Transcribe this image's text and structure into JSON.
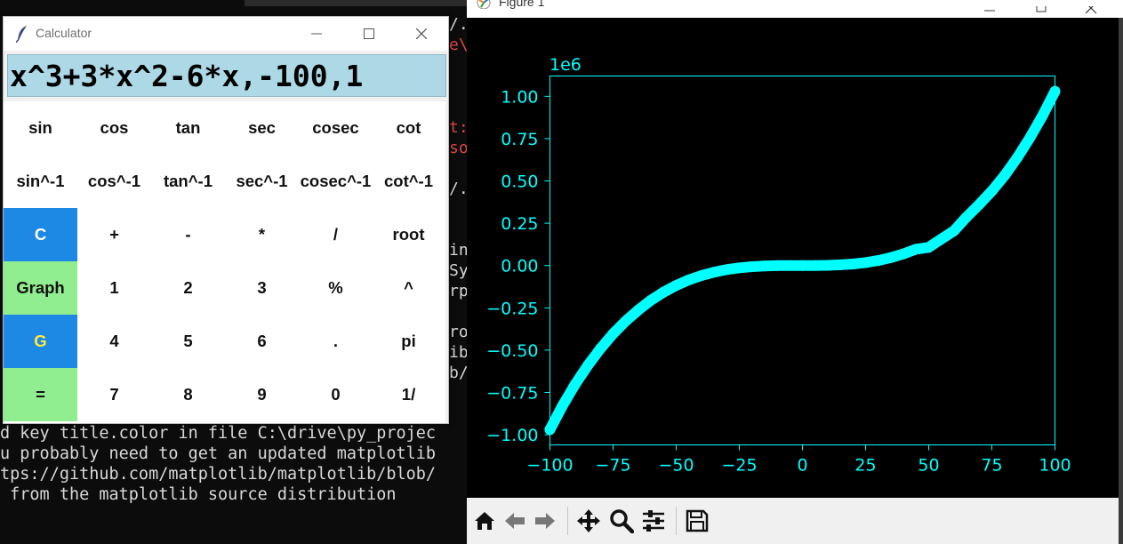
{
  "terminal": {
    "fragments": {
      "f1": "/.",
      "f2": "e\\",
      "f3": "t:",
      "f4": "so",
      "f5": "/.",
      "f6": "in",
      "f7": "Sy",
      "f8": "rp",
      "f9": "ro",
      "f10": "ib",
      "f11": "b/",
      "f12": "\\",
      "f13": "c",
      "f14": "u",
      "f15": "t"
    },
    "lines": [
      "d key title.color in file C:\\drive\\py_projec",
      "u probably need to get an updated matplotlib",
      "tps://github.com/matplotlib/matplotlib/blob/",
      " from the matplotlib source distribution"
    ],
    "colors": {
      "text": "#d8d8d8",
      "error": "#e04848"
    }
  },
  "calculator": {
    "title": "Calculator",
    "display_value": "x^3+3*x^2-6*x,-100,1",
    "keys": {
      "sin": "sin",
      "cos": "cos",
      "tan": "tan",
      "sec": "sec",
      "cosec": "cosec",
      "cot": "cot",
      "asin": "sin^-1",
      "acos": "cos^-1",
      "atan": "tan^-1",
      "asec": "sec^-1",
      "acosec": "cosec^-1",
      "acot": "cot^-1",
      "clear": "C",
      "plus": "+",
      "minus": "-",
      "multiply": "*",
      "divide": "/",
      "root": "root",
      "graph": "Graph",
      "one": "1",
      "two": "2",
      "three": "3",
      "percent": "%",
      "power": "^",
      "g": "G",
      "four": "4",
      "five": "5",
      "six": "6",
      "dot": ".",
      "pi": "pi",
      "equals": "=",
      "seven": "7",
      "eight": "8",
      "nine": "9",
      "zero": "0",
      "reciprocal": "1/"
    },
    "colors": {
      "display_bg": "#add8e6",
      "blue_key": "#1e88e5",
      "green_key": "#90ee90",
      "g_text": "#ffeb3b"
    }
  },
  "figure": {
    "title": "Figure 1",
    "toolbar": [
      "home-icon",
      "back-icon",
      "forward-icon",
      "pan-icon",
      "zoom-icon",
      "configure-icon",
      "save-icon"
    ]
  },
  "chart_data": {
    "type": "scatter",
    "title": "",
    "xlabel": "",
    "ylabel": "",
    "function": "x^3+3*x^2-6*x",
    "x_range": [
      -100,
      100
    ],
    "y_offset_label": "1e6",
    "xlim": [
      -100,
      100
    ],
    "ylim": [
      -1.06,
      1.12
    ],
    "xticks": [
      "−100",
      "−75",
      "−50",
      "−25",
      "0",
      "25",
      "50",
      "75",
      "100"
    ],
    "yticks": [
      "−1.00",
      "−0.75",
      "−0.50",
      "−0.25",
      "0.00",
      "0.25",
      "0.50",
      "0.75",
      "1.00"
    ],
    "xtick_values": [
      -100,
      -75,
      -50,
      -25,
      0,
      25,
      50,
      75,
      100
    ],
    "ytick_values": [
      -1.0,
      -0.75,
      -0.5,
      -0.25,
      0.0,
      0.25,
      0.5,
      0.75,
      1.0
    ],
    "grid": false,
    "background": "#000000",
    "color": "#00ffff",
    "series": [
      {
        "x": [
          -100,
          -95,
          -90,
          -85,
          -80,
          -75,
          -70,
          -65,
          -60,
          -55,
          -50,
          -45,
          -40,
          -35,
          -30,
          -25,
          -20,
          -15,
          -10,
          -5,
          0,
          5,
          10,
          15,
          20,
          25,
          30,
          35,
          40,
          45,
          50,
          55,
          60,
          65,
          70,
          75,
          80,
          85,
          90,
          95,
          100
        ],
        "y": [
          -0.9694,
          -0.828,
          -0.702,
          -0.5904,
          -0.4909,
          -0.4034,
          -0.3283,
          -0.2633,
          -0.2052,
          -0.1573,
          -0.1175,
          -0.0849,
          -0.0592,
          -0.0392,
          -0.0243,
          -0.0137,
          -0.0067,
          -0.0026,
          -0.0007,
          -0.0,
          0.0,
          0.0001,
          0.0013,
          0.004,
          0.0091,
          0.0172,
          0.0293,
          0.0467,
          0.0687,
          0.0965,
          0.1072,
          0.1565,
          0.2047,
          0.2871,
          0.3608,
          0.4403,
          0.5312,
          0.6358,
          0.7531,
          0.8837,
          1.0294
        ]
      }
    ]
  }
}
